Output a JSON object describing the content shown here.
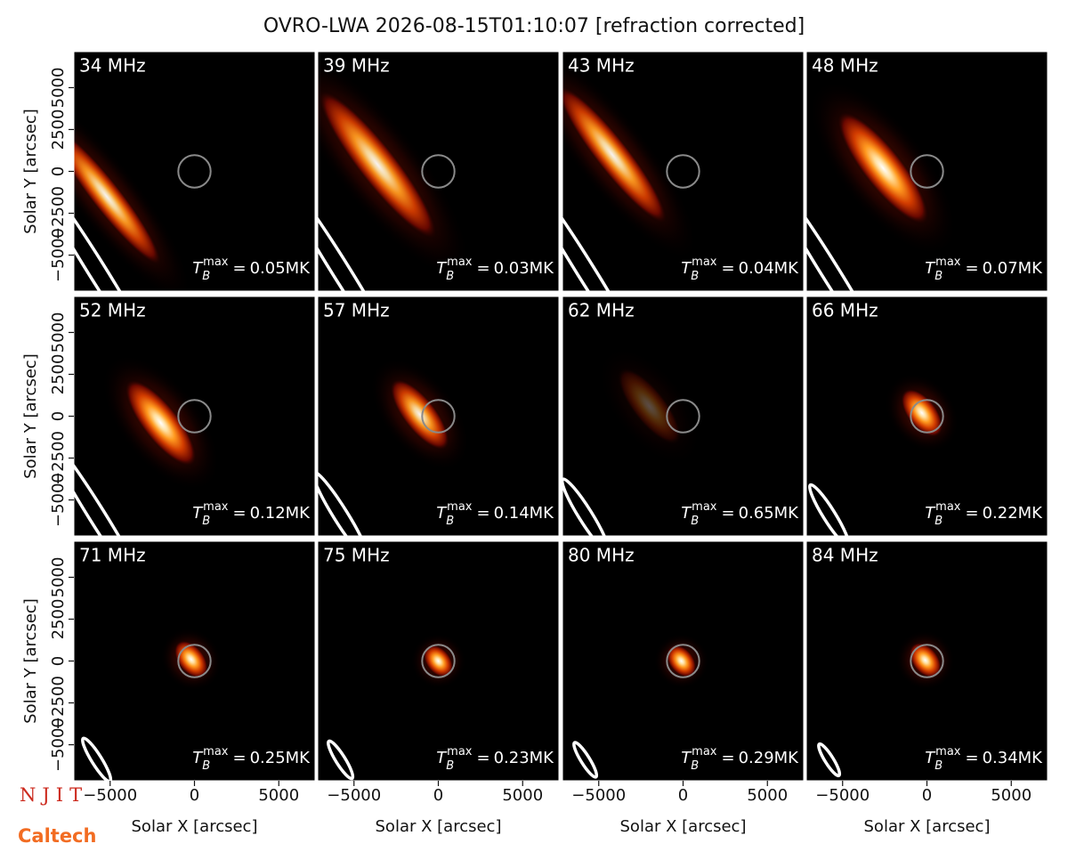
{
  "chart_data": {
    "type": "image-grid",
    "title": "OVRO-LWA 2026-08-15T01:10:07 [refraction corrected]",
    "xlabel": "Solar X [arcsec]",
    "ylabel": "Solar Y [arcsec]",
    "xlim": [
      -7150,
      7150
    ],
    "ylim": [
      -7150,
      7150
    ],
    "xticks": [
      {
        "value": -5000,
        "label": "−5000"
      },
      0,
      5000
    ],
    "yticks": [
      {
        "value": -5000,
        "label": "−5000"
      },
      {
        "value": -2500,
        "label": "−2500"
      },
      0,
      2500,
      5000
    ],
    "annotation": {
      "symbol": "T",
      "sub": "B",
      "sup": "max",
      "eq": "="
    },
    "categories": [
      "34 MHz",
      "39 MHz",
      "43 MHz",
      "48 MHz",
      "52 MHz",
      "57 MHz",
      "62 MHz",
      "66 MHz",
      "71 MHz",
      "75 MHz",
      "80 MHz",
      "84 MHz"
    ],
    "values": [
      0.05,
      0.03,
      0.04,
      0.07,
      0.12,
      0.14,
      0.65,
      0.22,
      0.25,
      0.23,
      0.29,
      0.34
    ],
    "value_labels": [
      "0.05MK",
      "0.03MK",
      "0.04MK",
      "0.07MK",
      "0.12MK",
      "0.14MK",
      "0.65MK",
      "0.22MK",
      "0.25MK",
      "0.23MK",
      "0.29MK",
      "0.34MK"
    ]
  },
  "logos": [
    "NJIT",
    "Caltech"
  ]
}
